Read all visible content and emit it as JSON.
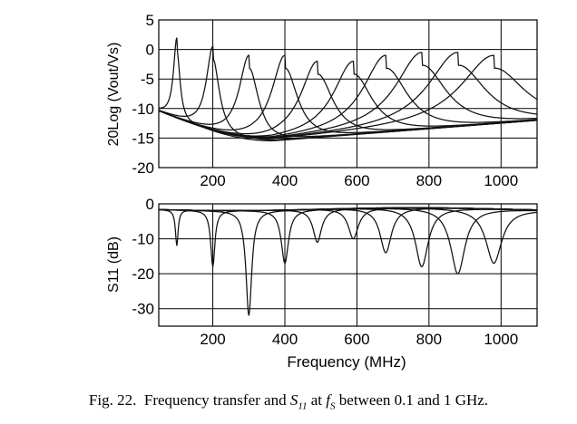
{
  "caption": {
    "prefix": "Fig. 22.",
    "text1": "Frequency transfer and",
    "s_symbol": "S",
    "s_sub": "11",
    "text2": "at",
    "f_symbol": "f",
    "f_sub": "S",
    "text3": "between 0.1 and 1 GHz."
  },
  "chart_data": [
    {
      "type": "line",
      "title": "",
      "xlabel": "",
      "ylabel": "20Log (Vout/Vs)",
      "xlim": [
        50,
        1100
      ],
      "ylim": [
        -20,
        5
      ],
      "x_ticks": [
        200,
        400,
        600,
        800,
        1000
      ],
      "y_ticks": [
        5,
        0,
        -5,
        -10,
        -15,
        -20
      ],
      "grid": true,
      "series_shape": {
        "baseline_start": -10.5,
        "baseline_min": -15.5,
        "baseline_end": -12
      },
      "series": [
        {
          "peak_freq": 100,
          "peak_gain": 2
        },
        {
          "peak_freq": 200,
          "peak_gain": 0.5
        },
        {
          "peak_freq": 300,
          "peak_gain": -1
        },
        {
          "peak_freq": 400,
          "peak_gain": -1
        },
        {
          "peak_freq": 490,
          "peak_gain": -2
        },
        {
          "peak_freq": 590,
          "peak_gain": -2
        },
        {
          "peak_freq": 680,
          "peak_gain": -1
        },
        {
          "peak_freq": 780,
          "peak_gain": -0.5
        },
        {
          "peak_freq": 880,
          "peak_gain": -0.5
        },
        {
          "peak_freq": 980,
          "peak_gain": -1
        }
      ]
    },
    {
      "type": "line",
      "title": "",
      "xlabel": "Frequency (MHz)",
      "ylabel": "S11 (dB)",
      "xlim": [
        50,
        1100
      ],
      "ylim": [
        -35,
        0
      ],
      "x_ticks": [
        200,
        400,
        600,
        800,
        1000
      ],
      "y_ticks": [
        0,
        -10,
        -20,
        -30
      ],
      "grid": true,
      "series_shape": {
        "baseline": -1.5
      },
      "series": [
        {
          "dip_freq": 100,
          "dip_depth": -12
        },
        {
          "dip_freq": 200,
          "dip_depth": -18
        },
        {
          "dip_freq": 300,
          "dip_depth": -32
        },
        {
          "dip_freq": 400,
          "dip_depth": -17
        },
        {
          "dip_freq": 490,
          "dip_depth": -11
        },
        {
          "dip_freq": 590,
          "dip_depth": -10
        },
        {
          "dip_freq": 680,
          "dip_depth": -14
        },
        {
          "dip_freq": 780,
          "dip_depth": -18
        },
        {
          "dip_freq": 880,
          "dip_depth": -20
        },
        {
          "dip_freq": 980,
          "dip_depth": -17
        }
      ]
    }
  ]
}
